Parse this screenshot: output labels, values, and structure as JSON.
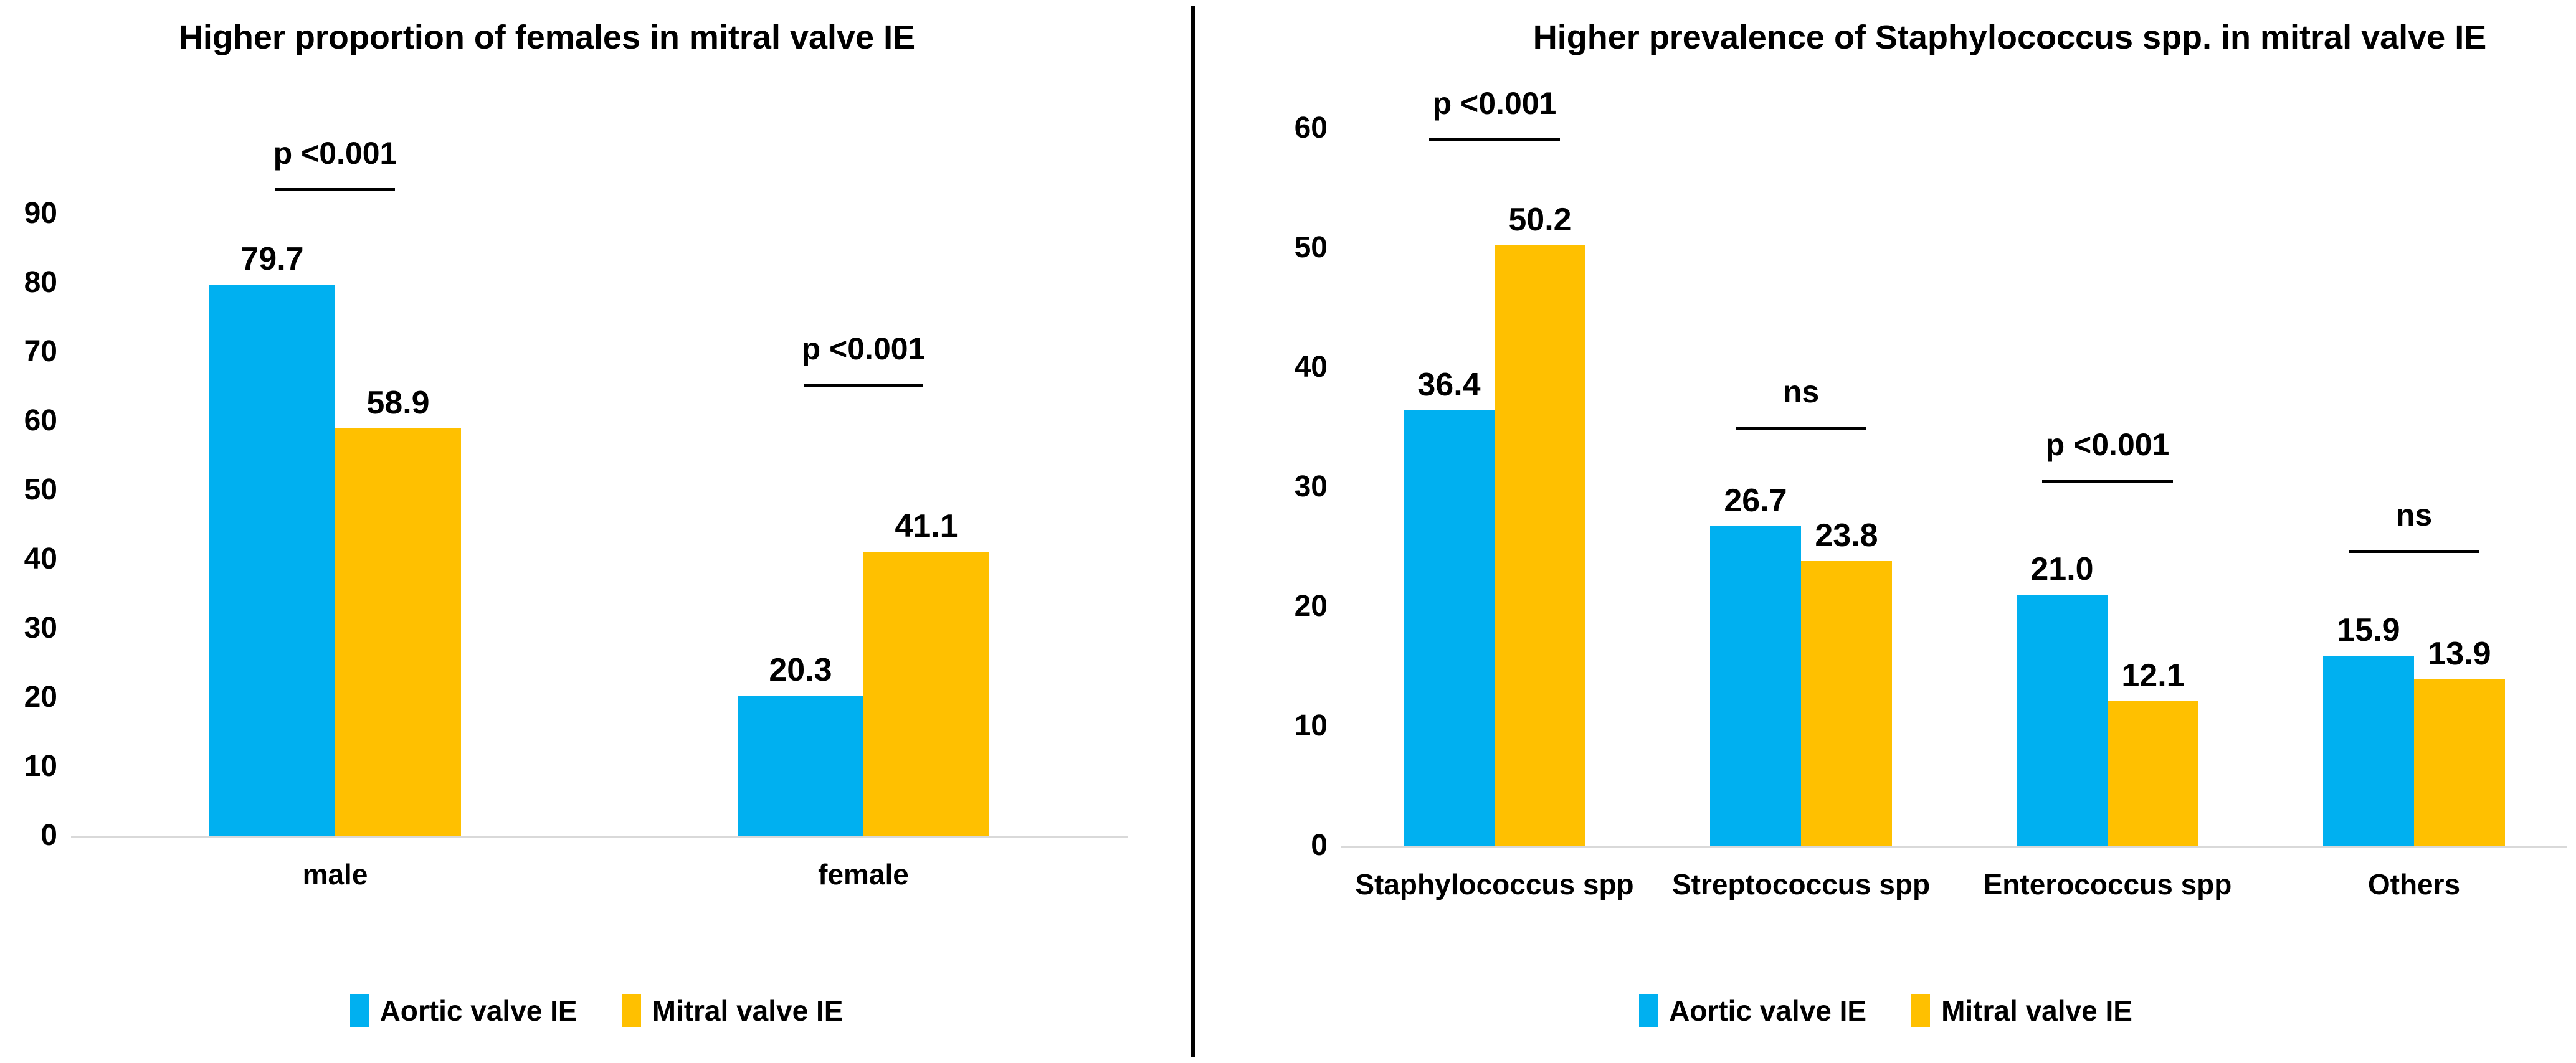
{
  "figure": {
    "background": "#FFFFFF",
    "divider_color": "#000000"
  },
  "chart_data": [
    {
      "type": "bar",
      "title": "Higher proportion of females in mitral valve IE",
      "categories": [
        "male",
        "female"
      ],
      "series": [
        {
          "name": "Aortic valve IE",
          "color": "#00B0F0",
          "values": [
            79.7,
            20.3
          ]
        },
        {
          "name": "Mitral valve IE",
          "color": "#FFC000",
          "values": [
            58.9,
            41.1
          ]
        }
      ],
      "annotations": [
        "p <0.001",
        "p <0.001"
      ],
      "xlabel": "",
      "ylabel": "",
      "ylim": [
        0,
        90
      ],
      "yticks": [
        0,
        10,
        20,
        30,
        40,
        50,
        60,
        70,
        80,
        90
      ],
      "value_decimals": 1,
      "grid": false,
      "legend_position": "bottom",
      "axis_line_color": "#D9D9D9"
    },
    {
      "type": "bar",
      "title": "Higher prevalence of Staphylococcus spp. in mitral valve IE",
      "categories": [
        "Staphylococcus spp",
        "Streptococcus spp",
        "Enterococcus spp",
        "Others"
      ],
      "series": [
        {
          "name": "Aortic valve IE",
          "color": "#00B0F0",
          "values": [
            36.4,
            26.7,
            21.0,
            15.9
          ]
        },
        {
          "name": "Mitral valve IE",
          "color": "#FFC000",
          "values": [
            50.2,
            23.8,
            12.1,
            13.9
          ]
        }
      ],
      "annotations": [
        "p <0.001",
        "ns",
        "p <0.001",
        "ns"
      ],
      "xlabel": "",
      "ylabel": "",
      "ylim": [
        0,
        60
      ],
      "yticks": [
        0,
        10,
        20,
        30,
        40,
        50,
        60
      ],
      "value_decimals": 1,
      "grid": false,
      "legend_position": "bottom",
      "axis_line_color": "#D9D9D9"
    }
  ]
}
